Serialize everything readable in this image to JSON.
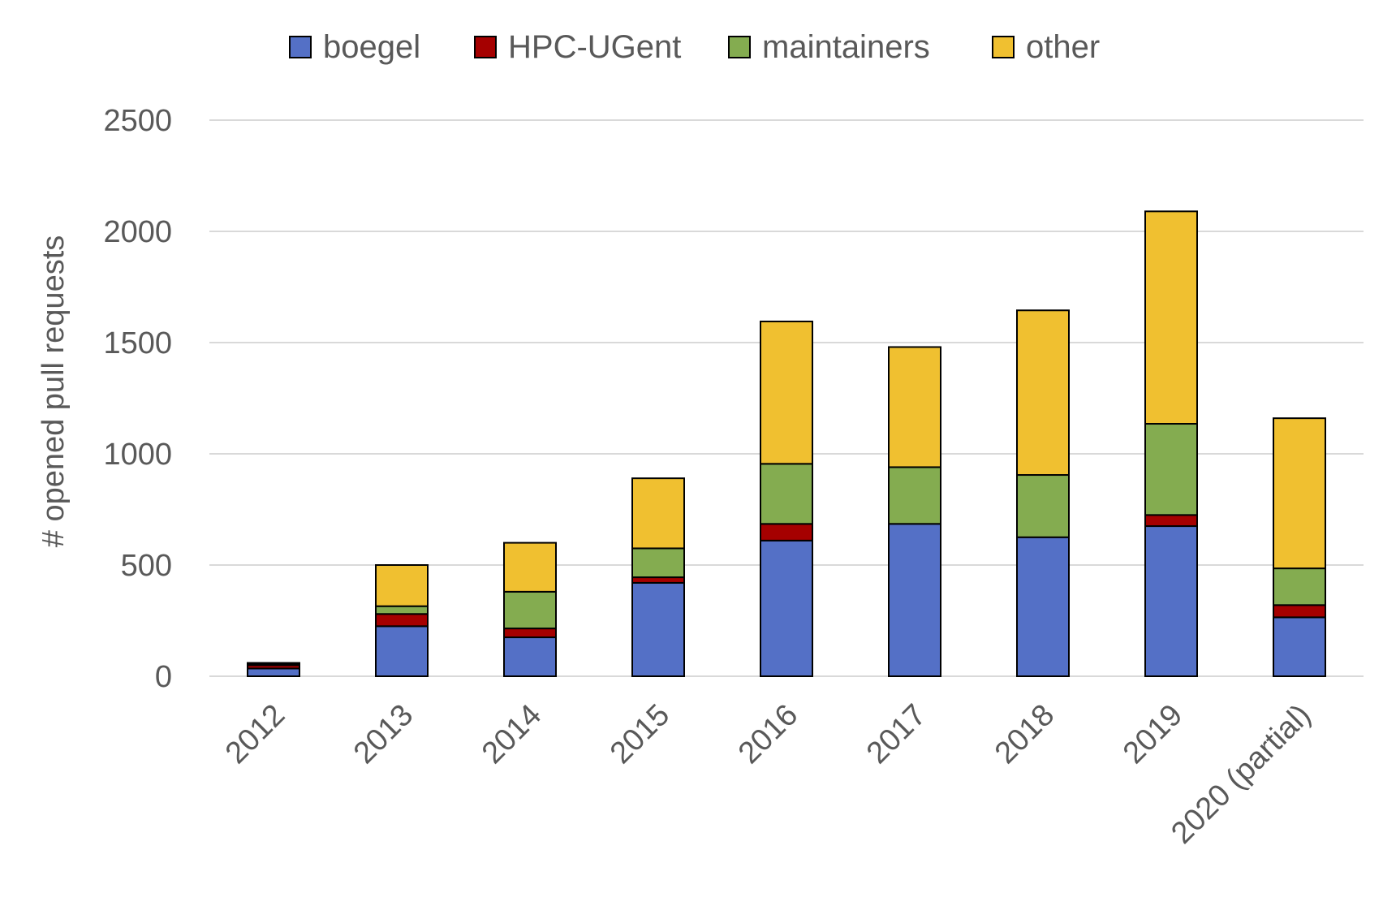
{
  "chart_data": {
    "type": "bar",
    "stacked": true,
    "title": "",
    "xlabel": "",
    "ylabel": "# opened pull requests",
    "ylim": [
      0,
      2500
    ],
    "yticks": [
      0,
      500,
      1000,
      1500,
      2000,
      2500
    ],
    "grid": true,
    "legend_position": "top-center",
    "categories": [
      "2012",
      "2013",
      "2014",
      "2015",
      "2016",
      "2017",
      "2018",
      "2019",
      "2020 (partial)"
    ],
    "series": [
      {
        "name": "boegel",
        "color": "#5470C6",
        "values": [
          35,
          225,
          175,
          420,
          610,
          685,
          625,
          675,
          265
        ]
      },
      {
        "name": "HPC-UGent",
        "color": "#A50000",
        "values": [
          15,
          55,
          40,
          25,
          75,
          0,
          0,
          50,
          55
        ]
      },
      {
        "name": "maintainers",
        "color": "#84AC50",
        "values": [
          5,
          35,
          165,
          130,
          270,
          255,
          280,
          410,
          165
        ]
      },
      {
        "name": "other",
        "color": "#F0C030",
        "values": [
          5,
          185,
          220,
          315,
          640,
          540,
          740,
          955,
          675
        ]
      }
    ]
  }
}
